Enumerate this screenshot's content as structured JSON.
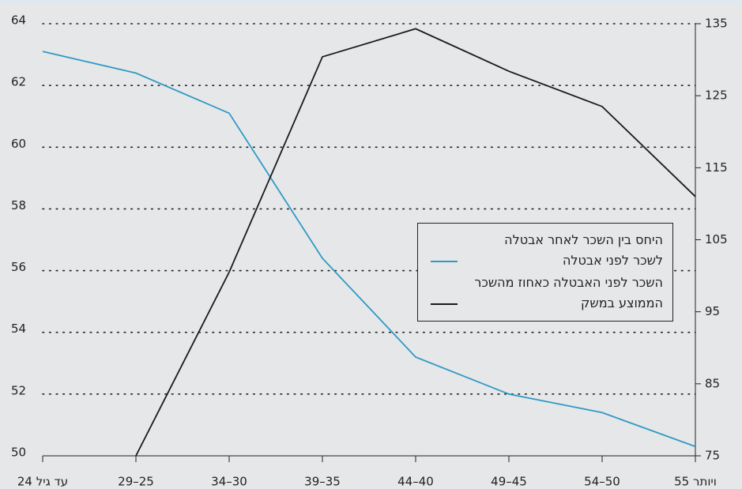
{
  "chart_data": {
    "type": "line",
    "categories": [
      "עד גיל 24",
      "29–25",
      "34–30",
      "39–35",
      "44–40",
      "49–45",
      "54–50",
      "55 ויותר"
    ],
    "series": [
      {
        "name": "היחס בין השכר לאחר אבטלה לשכר לפני אבטלה",
        "color": "#2f9ac4",
        "values": [
          63.1,
          62.4,
          61.1,
          56.4,
          53.2,
          52.0,
          51.4,
          50.3
        ]
      },
      {
        "name": "השכר לפני האבטלה כאחוז מהשכר הממוצע במשק",
        "color": "#1a1a1a",
        "axis": "y2",
        "values": [
          null,
          75,
          100.5,
          130.4,
          134.3,
          128.4,
          123.5,
          111.0
        ]
      }
    ],
    "ylim": [
      50,
      64
    ],
    "yticks": [
      50,
      52,
      54,
      56,
      58,
      60,
      62,
      64
    ],
    "y2lim": [
      75,
      135
    ],
    "y2ticks": [
      75,
      85,
      95,
      105,
      115,
      125,
      135
    ],
    "grid": true
  }
}
